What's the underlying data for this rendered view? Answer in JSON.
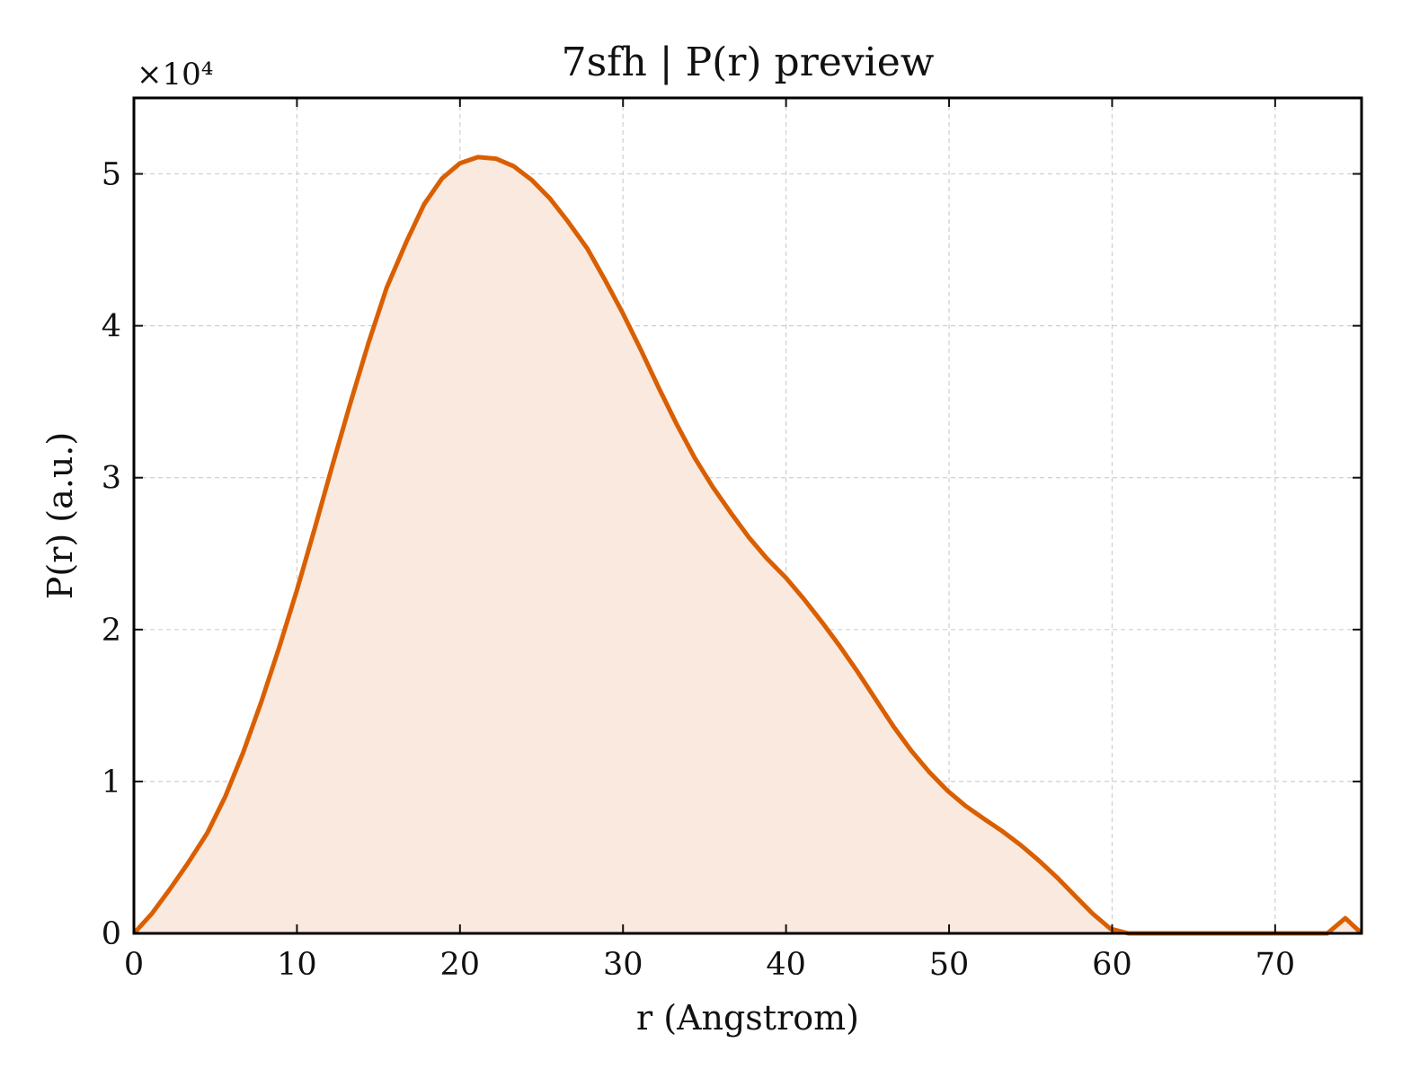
{
  "chart_data": {
    "type": "area",
    "title": "7sfh | P(r) preview",
    "xlabel": "r (Angstrom)",
    "ylabel": "P(r) (a.u.)",
    "y_offset_label": "×10⁴",
    "xlim": [
      0,
      75.3
    ],
    "ylim": [
      0,
      5.5
    ],
    "xticks": [
      0,
      10,
      20,
      30,
      40,
      50,
      60,
      70
    ],
    "xtick_labels": [
      "0",
      "10",
      "20",
      "30",
      "40",
      "50",
      "60",
      "70"
    ],
    "yticks": [
      0,
      1,
      2,
      3,
      4,
      5
    ],
    "ytick_labels": [
      "0",
      "1",
      "2",
      "3",
      "4",
      "5"
    ],
    "grid": true,
    "colors": {
      "line": "#d95f02",
      "fill": "#f9e9de"
    },
    "series": [
      {
        "x": [
          0,
          1.1,
          2.2,
          3.3,
          4.5,
          5.6,
          6.7,
          7.8,
          8.9,
          10.0,
          11.1,
          12.2,
          13.3,
          14.4,
          15.5,
          16.7,
          17.8,
          18.9,
          20.0,
          21.1,
          22.2,
          23.3,
          24.4,
          25.5,
          26.6,
          27.8,
          28.9,
          30.0,
          31.1,
          32.2,
          33.3,
          34.4,
          35.5,
          36.6,
          37.7,
          38.8,
          40.0,
          41.1,
          42.2,
          43.3,
          44.4,
          45.5,
          46.6,
          47.7,
          48.8,
          49.9,
          51.0,
          52.2,
          53.3,
          54.4,
          55.5,
          56.6,
          57.7,
          58.8,
          59.9,
          61.0,
          62.1,
          63.3,
          64.4,
          65.5,
          66.6,
          67.7,
          68.8,
          69.9,
          71.0,
          72.1,
          73.2,
          74.3,
          75.3
        ],
        "values": [
          0,
          0.13,
          0.29,
          0.46,
          0.66,
          0.9,
          1.19,
          1.52,
          1.88,
          2.26,
          2.67,
          3.09,
          3.5,
          3.89,
          4.25,
          4.55,
          4.8,
          4.97,
          5.07,
          5.11,
          5.1,
          5.05,
          4.96,
          4.84,
          4.69,
          4.51,
          4.3,
          4.08,
          3.84,
          3.59,
          3.35,
          3.13,
          2.94,
          2.77,
          2.61,
          2.47,
          2.34,
          2.2,
          2.05,
          1.89,
          1.72,
          1.54,
          1.36,
          1.2,
          1.06,
          0.94,
          0.84,
          0.75,
          0.67,
          0.58,
          0.48,
          0.37,
          0.25,
          0.13,
          0.03,
          -0.05,
          -0.12,
          -0.16,
          -0.18,
          -0.19,
          -0.2,
          -0.21,
          -0.24,
          -0.29,
          -0.3,
          -0.22,
          -0.1,
          0.1,
          0.0
        ]
      }
    ]
  }
}
